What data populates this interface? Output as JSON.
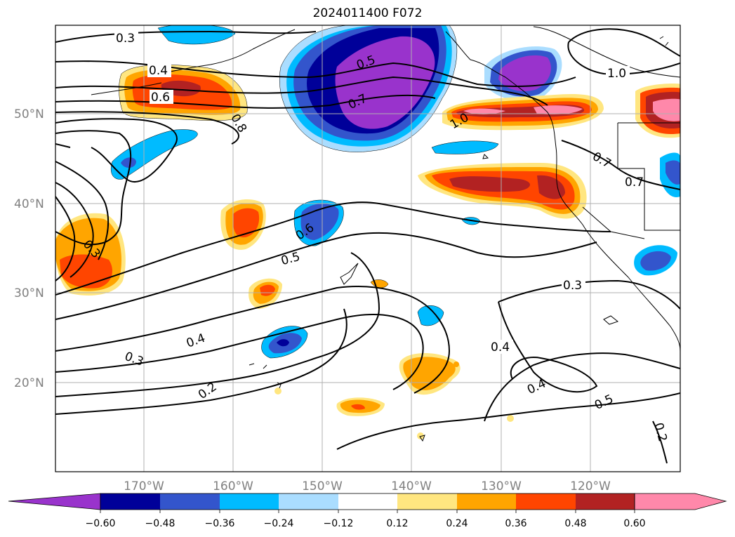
{
  "title": "2024011400 F072",
  "map": {
    "lat_labels": [
      "50°N",
      "40°N",
      "30°N",
      "20°N"
    ],
    "lon_labels": [
      "170°W",
      "160°W",
      "150°W",
      "140°W",
      "130°W",
      "120°W"
    ],
    "contour_labels": [
      "0.3",
      "0.4",
      "0.6",
      "0.8",
      "0.5",
      "0.7",
      "1.0",
      "0.7",
      "0.7",
      "0.6",
      "0.5",
      "0.3",
      "0.4",
      "0.4",
      "0.3",
      "0.2",
      "0.4",
      "0.5",
      "0.3",
      "0.2",
      "1.0"
    ]
  },
  "colorbar": {
    "labels": [
      "−0.60",
      "−0.48",
      "−0.36",
      "−0.24",
      "−0.12",
      "0.12",
      "0.24",
      "0.36",
      "0.48",
      "0.60"
    ],
    "colors": {
      "lt_-0.60": "#9933cc",
      "-0.60_-0.48": "#000099",
      "-0.48_-0.36": "#3355cc",
      "-0.36_-0.24": "#00bbff",
      "-0.24_-0.12": "#aaddff",
      "-0.12_0.12": "#ffffff",
      "0.12_0.24": "#ffe680",
      "0.24_0.36": "#ffa500",
      "0.36_0.48": "#ff4500",
      "0.48_0.60": "#b22222",
      "gt_0.60": "#ff88aa"
    }
  }
}
